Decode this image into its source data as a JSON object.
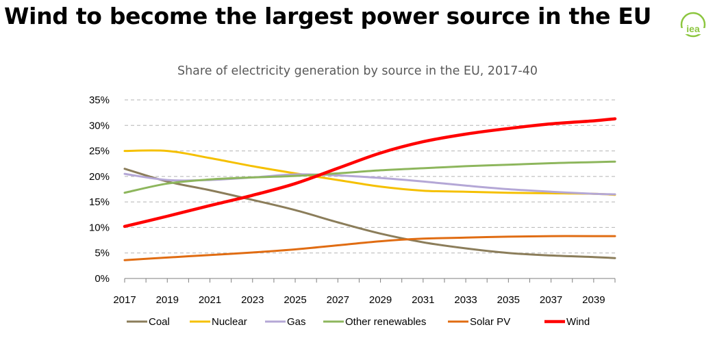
{
  "headline": "Wind to become the largest power source in the EU",
  "logo": {
    "text": "iea",
    "color": "#8cc63f"
  },
  "chart_data": {
    "type": "line",
    "title": "Share of electricity generation by source in the EU, 2017-40",
    "x": [
      2017,
      2019,
      2021,
      2023,
      2025,
      2027,
      2029,
      2031,
      2033,
      2035,
      2037,
      2039,
      2040
    ],
    "x_tick_labels": [
      "2017",
      "2019",
      "2021",
      "2023",
      "2025",
      "2027",
      "2029",
      "2031",
      "2033",
      "2035",
      "2037",
      "2039"
    ],
    "xlim": [
      2017,
      2040
    ],
    "ylim": [
      0,
      35
    ],
    "y_ticks": [
      0,
      5,
      10,
      15,
      20,
      25,
      30,
      35
    ],
    "y_tick_labels": [
      "0%",
      "5%",
      "10%",
      "15%",
      "20%",
      "25%",
      "30%",
      "35%"
    ],
    "grid": "horizontal dashed",
    "legend_position": "bottom",
    "series": [
      {
        "name": "Coal",
        "color": "#8b7d5a",
        "width": 3,
        "values": [
          21.5,
          19.0,
          17.3,
          15.4,
          13.4,
          11.0,
          8.8,
          7.1,
          5.9,
          5.0,
          4.5,
          4.2,
          4.0
        ]
      },
      {
        "name": "Nuclear",
        "color": "#f5c000",
        "width": 3,
        "values": [
          25.0,
          25.0,
          23.6,
          22.0,
          20.6,
          19.3,
          18.0,
          17.2,
          17.0,
          16.8,
          16.7,
          16.6,
          16.4
        ]
      },
      {
        "name": "Gas",
        "color": "#b4a7d6",
        "width": 3,
        "values": [
          20.5,
          19.3,
          19.3,
          19.8,
          20.4,
          20.2,
          19.7,
          19.0,
          18.2,
          17.5,
          17.0,
          16.6,
          16.5
        ]
      },
      {
        "name": "Other renewables",
        "color": "#8db65c",
        "width": 3,
        "values": [
          16.8,
          18.6,
          19.4,
          19.8,
          20.1,
          20.6,
          21.2,
          21.6,
          22.0,
          22.3,
          22.6,
          22.8,
          22.9
        ]
      },
      {
        "name": "Solar PV",
        "color": "#e06c12",
        "width": 3,
        "values": [
          3.6,
          4.1,
          4.6,
          5.1,
          5.7,
          6.5,
          7.3,
          7.8,
          8.0,
          8.2,
          8.3,
          8.3,
          8.3
        ]
      },
      {
        "name": "Wind",
        "color": "#ff0000",
        "width": 4.5,
        "values": [
          10.2,
          12.2,
          14.3,
          16.3,
          18.6,
          21.6,
          24.6,
          26.8,
          28.3,
          29.4,
          30.3,
          30.9,
          31.3
        ]
      }
    ]
  }
}
